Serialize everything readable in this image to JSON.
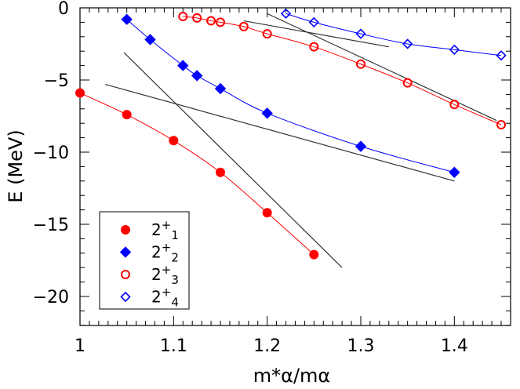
{
  "chart_data": {
    "type": "scatter",
    "xlabel": "m*α/mα",
    "ylabel": "E (MeV)",
    "xlim": [
      1.0,
      1.45
    ],
    "ylim": [
      -22,
      0
    ],
    "x_ticks": [
      1.0,
      1.1,
      1.2,
      1.3,
      1.4
    ],
    "x_tick_labels": [
      "1",
      "1.1",
      "1.2",
      "1.3",
      "1.4"
    ],
    "y_ticks": [
      0,
      -5,
      -10,
      -15,
      -20
    ],
    "y_tick_labels": [
      "0",
      "−5",
      "−10",
      "−15",
      "−20"
    ],
    "legend_position": "bottom-left",
    "series": [
      {
        "name": "2+1",
        "legend_label": {
          "base": "2",
          "sup": "+",
          "sub": "1"
        },
        "color": "#ff0000",
        "marker": "circle-filled",
        "x": [
          1.0,
          1.05,
          1.1,
          1.15,
          1.2,
          1.25
        ],
        "y": [
          -5.9,
          -7.4,
          -9.2,
          -11.4,
          -14.2,
          -17.1
        ]
      },
      {
        "name": "2+2",
        "legend_label": {
          "base": "2",
          "sup": "+",
          "sub": "2"
        },
        "color": "#0000ff",
        "marker": "diamond-filled",
        "x": [
          1.05,
          1.075,
          1.11,
          1.125,
          1.15,
          1.2,
          1.3,
          1.4
        ],
        "y": [
          -0.8,
          -2.2,
          -4.0,
          -4.7,
          -5.6,
          -7.3,
          -9.6,
          -11.4
        ]
      },
      {
        "name": "2+3",
        "legend_label": {
          "base": "2",
          "sup": "+",
          "sub": "3"
        },
        "color": "#ff0000",
        "marker": "circle-open",
        "x": [
          1.11,
          1.125,
          1.14,
          1.15,
          1.175,
          1.2,
          1.25,
          1.3,
          1.35,
          1.4,
          1.45
        ],
        "y": [
          -0.6,
          -0.7,
          -0.9,
          -1.0,
          -1.3,
          -1.8,
          -2.7,
          -3.9,
          -5.2,
          -6.7,
          -8.1
        ]
      },
      {
        "name": "2+4",
        "legend_label": {
          "base": "2",
          "sup": "+",
          "sub": "4"
        },
        "color": "#0000ff",
        "marker": "diamond-open",
        "x": [
          1.22,
          1.25,
          1.3,
          1.35,
          1.4,
          1.45
        ],
        "y": [
          -0.4,
          -1.0,
          -1.8,
          -2.5,
          -2.9,
          -3.3
        ]
      }
    ],
    "reference_lines": [
      {
        "x": [
          1.047,
          1.28
        ],
        "y": [
          -3.1,
          -18.0
        ]
      },
      {
        "x": [
          1.027,
          1.4
        ],
        "y": [
          -5.3,
          -12.0
        ]
      },
      {
        "x": [
          1.175,
          1.33
        ],
        "y": [
          -0.9,
          -2.7
        ]
      },
      {
        "x": [
          1.2,
          1.445
        ],
        "y": [
          -0.4,
          -7.8
        ]
      }
    ]
  }
}
